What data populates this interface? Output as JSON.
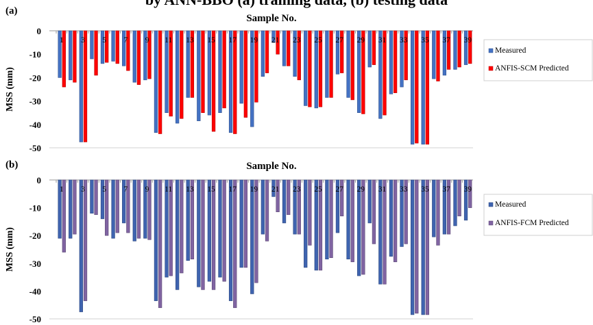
{
  "page_title": "by ANN-BBO (a) training data, (b) testing data",
  "chart_data": [
    {
      "type": "bar",
      "panel_label": "(a)",
      "xlabel": "Sample No.",
      "ylabel": "MSS (mm)",
      "ylim": [
        -50,
        0
      ],
      "yticks": [
        0,
        -10,
        -20,
        -30,
        -40,
        -50
      ],
      "categories": [
        "1",
        "2",
        "3",
        "4",
        "5",
        "6",
        "7",
        "8",
        "9",
        "10",
        "11",
        "12",
        "13",
        "14",
        "15",
        "16",
        "17",
        "18",
        "19",
        "20",
        "21",
        "22",
        "23",
        "24",
        "25",
        "26",
        "27",
        "28",
        "29",
        "30",
        "31",
        "32",
        "33",
        "34",
        "35",
        "36",
        "37",
        "38",
        "39"
      ],
      "category_labels": [
        "1",
        "",
        "3",
        "",
        "5",
        "",
        "7",
        "",
        "9",
        "",
        "11",
        "",
        "13",
        "",
        "15",
        "",
        "17",
        "",
        "19",
        "",
        "21",
        "",
        "23",
        "",
        "25",
        "",
        "27",
        "",
        "29",
        "",
        "31",
        "",
        "33",
        "",
        "35",
        "",
        "37",
        "",
        "39"
      ],
      "legend_position": "right",
      "series": [
        {
          "name": "Measured",
          "color": "#4472c4",
          "values": [
            -20,
            -21,
            -47.5,
            -12,
            -14,
            -13,
            -15,
            -22,
            -21,
            -43.5,
            -35,
            -39.5,
            -28.5,
            -38.5,
            -36,
            -35,
            -43.5,
            -31,
            -41,
            -19.5,
            -5,
            -15,
            -19.5,
            -32,
            -33,
            -28.5,
            -18.5,
            -28.5,
            -35,
            -15.5,
            -37.5,
            -27,
            -24,
            -48.5,
            -48.5,
            -20.5,
            -19,
            -16.5,
            -14.5
          ]
        },
        {
          "name": "ANFIS-SCM Predicted",
          "color": "#ff0000",
          "values": [
            -24,
            -22,
            -47.5,
            -19,
            -13.5,
            -14,
            -17,
            -23,
            -20.5,
            -44,
            -36.5,
            -37.5,
            -28.5,
            -35,
            -43,
            -33,
            -44,
            -37,
            -30.5,
            -18,
            -10,
            -15,
            -21,
            -32.5,
            -32.5,
            -28.5,
            -18,
            -29.5,
            -35.5,
            -14.5,
            -36,
            -26.5,
            -21,
            -48,
            -48.5,
            -21.5,
            -16.5,
            -15.5,
            -14
          ]
        }
      ]
    },
    {
      "type": "bar",
      "panel_label": "(b)",
      "xlabel": "Sample No.",
      "ylabel": "MSS (mm)",
      "ylim": [
        -50,
        0
      ],
      "yticks": [
        0,
        -10,
        -20,
        -30,
        -40,
        -50
      ],
      "categories": [
        "1",
        "2",
        "3",
        "4",
        "5",
        "6",
        "7",
        "8",
        "9",
        "10",
        "11",
        "12",
        "13",
        "14",
        "15",
        "16",
        "17",
        "18",
        "19",
        "20",
        "21",
        "22",
        "23",
        "24",
        "25",
        "26",
        "27",
        "28",
        "29",
        "30",
        "31",
        "32",
        "33",
        "34",
        "35",
        "36",
        "37",
        "38",
        "39"
      ],
      "category_labels": [
        "1",
        "",
        "3",
        "",
        "5",
        "",
        "7",
        "",
        "9",
        "",
        "11",
        "",
        "13",
        "",
        "15",
        "",
        "17",
        "",
        "19",
        "",
        "21",
        "",
        "23",
        "",
        "25",
        "",
        "27",
        "",
        "29",
        "",
        "31",
        "",
        "33",
        "",
        "35",
        "",
        "37",
        "",
        "39"
      ],
      "legend_position": "right",
      "series": [
        {
          "name": "Measured",
          "color": "#3f64b0",
          "values": [
            -21,
            -21,
            -47.5,
            -12,
            -14,
            -21,
            -15.5,
            -22,
            -21,
            -43.5,
            -35,
            -39.5,
            -29,
            -38.5,
            -36.5,
            -35,
            -43.5,
            -31.5,
            -41,
            -19.5,
            -6,
            -15.5,
            -19.5,
            -31.5,
            -32.5,
            -28.5,
            -19,
            -28.5,
            -34.5,
            -15.5,
            -37.5,
            -27.5,
            -24,
            -48.5,
            -48.5,
            -20.5,
            -19.5,
            -16.5,
            -14.5
          ]
        },
        {
          "name": "ANFIS-FCM Predicted",
          "color": "#8064a2",
          "values": [
            -26,
            -19.5,
            -43.5,
            -12.5,
            -20,
            -19,
            -19,
            -21,
            -21.5,
            -46,
            -34.5,
            -33.5,
            -28.5,
            -39.5,
            -39.5,
            -36.5,
            -46,
            -31.5,
            -37,
            -22,
            -11.5,
            -12.5,
            -19.5,
            -23.5,
            -32.5,
            -28,
            -13,
            -29.5,
            -34,
            -23,
            -37.5,
            -29.5,
            -23,
            -48,
            -48.5,
            -23.5,
            -19.5,
            -13,
            -10
          ]
        }
      ]
    }
  ]
}
